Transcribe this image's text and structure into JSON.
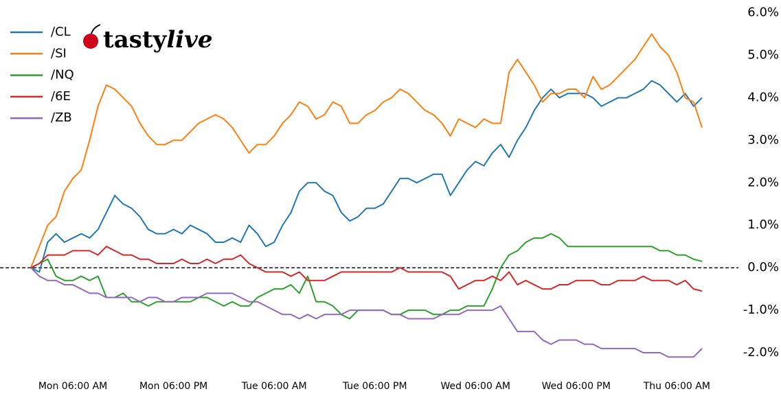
{
  "chart_data": {
    "type": "line",
    "logo": [
      "tasty",
      "live"
    ],
    "categories": [
      null,
      null,
      null,
      null,
      null,
      "Mon 06:00 AM",
      null,
      null,
      null,
      null,
      null,
      null,
      null,
      null,
      null,
      null,
      null,
      "Mon 06:00 PM",
      null,
      null,
      null,
      null,
      null,
      null,
      null,
      null,
      null,
      null,
      null,
      "Tue 06:00 AM",
      null,
      null,
      null,
      null,
      null,
      null,
      null,
      null,
      null,
      null,
      null,
      "Tue 06:00 PM",
      null,
      null,
      null,
      null,
      null,
      null,
      null,
      null,
      null,
      null,
      null,
      "Wed 06:00 AM",
      null,
      null,
      null,
      null,
      null,
      null,
      null,
      null,
      null,
      null,
      null,
      "Wed 06:00 PM",
      null,
      null,
      null,
      null,
      null,
      null,
      null,
      null,
      null,
      null,
      null,
      "Thu 06:00 AM",
      null,
      null,
      null
    ],
    "ylim": [
      -2.5,
      6.3
    ],
    "yticks": [
      {
        "value": -2,
        "label": "-2.0%"
      },
      {
        "value": -1,
        "label": "-1.0%"
      },
      {
        "value": 0,
        "label": "0.0%"
      },
      {
        "value": 1,
        "label": "1.0%"
      },
      {
        "value": 2,
        "label": "2.0%"
      },
      {
        "value": 3,
        "label": "3.0%"
      },
      {
        "value": 4,
        "label": "4.0%"
      },
      {
        "value": 5,
        "label": "5.0%"
      },
      {
        "value": 6,
        "label": "6.0%"
      }
    ],
    "hline": 0,
    "grid": false,
    "legend": "upper left",
    "series": [
      {
        "name": "/CL",
        "color": "#1f77b4",
        "values": [
          0,
          -0.1,
          0.6,
          0.8,
          0.6,
          0.7,
          0.8,
          0.7,
          0.9,
          1.3,
          1.7,
          1.5,
          1.4,
          1.2,
          0.9,
          0.8,
          0.8,
          0.9,
          0.8,
          1.0,
          0.9,
          0.8,
          0.6,
          0.6,
          0.7,
          0.6,
          1.0,
          0.8,
          0.5,
          0.6,
          1.0,
          1.3,
          1.8,
          2.0,
          2.0,
          1.8,
          1.7,
          1.3,
          1.1,
          1.2,
          1.4,
          1.4,
          1.5,
          1.8,
          2.1,
          2.1,
          2.0,
          2.1,
          2.2,
          2.2,
          1.7,
          2.0,
          2.3,
          2.5,
          2.4,
          2.7,
          2.9,
          2.6,
          3.0,
          3.3,
          3.7,
          4.0,
          4.2,
          4.0,
          4.1,
          4.1,
          4.1,
          4.0,
          3.8,
          3.9,
          4.0,
          4.0,
          4.1,
          4.2,
          4.4,
          4.3,
          4.1,
          3.9,
          4.1,
          3.8,
          4.0
        ]
      },
      {
        "name": "/SI",
        "color": "#ff7f0e",
        "values": [
          0,
          0.5,
          1.0,
          1.2,
          1.8,
          2.1,
          2.3,
          3.0,
          3.8,
          4.3,
          4.2,
          4.0,
          3.8,
          3.4,
          3.1,
          2.9,
          2.9,
          3.0,
          3.0,
          3.2,
          3.4,
          3.5,
          3.6,
          3.5,
          3.3,
          3.0,
          2.7,
          2.9,
          2.9,
          3.1,
          3.4,
          3.6,
          3.9,
          3.8,
          3.5,
          3.6,
          3.9,
          3.8,
          3.4,
          3.4,
          3.6,
          3.7,
          3.9,
          4.0,
          4.2,
          4.1,
          3.9,
          3.7,
          3.6,
          3.4,
          3.1,
          3.5,
          3.4,
          3.3,
          3.5,
          3.4,
          3.4,
          4.6,
          4.9,
          4.6,
          4.3,
          3.9,
          4.1,
          4.1,
          4.2,
          4.2,
          4.0,
          4.5,
          4.2,
          4.3,
          4.5,
          4.7,
          4.9,
          5.2,
          5.5,
          5.2,
          5.0,
          4.6,
          4.0,
          3.9,
          3.3
        ]
      },
      {
        "name": "/NQ",
        "color": "#2ca02c",
        "values": [
          0,
          0.1,
          0.2,
          -0.2,
          -0.3,
          -0.3,
          -0.2,
          -0.3,
          -0.2,
          -0.7,
          -0.7,
          -0.6,
          -0.8,
          -0.8,
          -0.9,
          -0.8,
          -0.8,
          -0.8,
          -0.8,
          -0.8,
          -0.7,
          -0.7,
          -0.8,
          -0.9,
          -0.8,
          -0.9,
          -0.9,
          -0.7,
          -0.6,
          -0.5,
          -0.5,
          -0.4,
          -0.6,
          -0.2,
          -0.8,
          -0.8,
          -0.9,
          -1.1,
          -1.2,
          -1.0,
          -1.0,
          -1.0,
          -1.0,
          -1.1,
          -1.1,
          -1.0,
          -1.0,
          -1.0,
          -1.1,
          -1.1,
          -1.0,
          -1.0,
          -0.9,
          -0.9,
          -0.9,
          -0.5,
          0.0,
          0.3,
          0.4,
          0.6,
          0.7,
          0.7,
          0.8,
          0.7,
          0.5,
          0.5,
          0.5,
          0.5,
          0.5,
          0.5,
          0.5,
          0.5,
          0.5,
          0.5,
          0.5,
          0.4,
          0.4,
          0.3,
          0.3,
          0.2,
          0.15
        ]
      },
      {
        "name": "/6E",
        "color": "#d62728",
        "values": [
          0,
          0.1,
          0.3,
          0.3,
          0.3,
          0.4,
          0.4,
          0.4,
          0.3,
          0.5,
          0.4,
          0.3,
          0.3,
          0.2,
          0.2,
          0.1,
          0.1,
          0.1,
          0.2,
          0.1,
          0.1,
          0.2,
          0.1,
          0.2,
          0.2,
          0.3,
          0.1,
          0.0,
          -0.1,
          -0.1,
          -0.1,
          -0.2,
          -0.1,
          -0.3,
          -0.3,
          -0.3,
          -0.2,
          -0.1,
          -0.1,
          -0.1,
          -0.1,
          -0.1,
          -0.1,
          -0.1,
          0.0,
          -0.1,
          -0.1,
          -0.1,
          -0.1,
          -0.1,
          -0.2,
          -0.5,
          -0.4,
          -0.3,
          -0.3,
          -0.2,
          -0.3,
          -0.1,
          -0.4,
          -0.3,
          -0.4,
          -0.5,
          -0.5,
          -0.4,
          -0.4,
          -0.3,
          -0.3,
          -0.3,
          -0.4,
          -0.4,
          -0.3,
          -0.3,
          -0.3,
          -0.2,
          -0.3,
          -0.3,
          -0.3,
          -0.4,
          -0.3,
          -0.5,
          -0.55
        ]
      },
      {
        "name": "/ZB",
        "color": "#9467bd",
        "values": [
          0,
          -0.2,
          -0.3,
          -0.3,
          -0.4,
          -0.4,
          -0.5,
          -0.6,
          -0.6,
          -0.7,
          -0.7,
          -0.7,
          -0.7,
          -0.8,
          -0.7,
          -0.7,
          -0.8,
          -0.8,
          -0.7,
          -0.7,
          -0.7,
          -0.6,
          -0.6,
          -0.6,
          -0.6,
          -0.7,
          -0.8,
          -0.8,
          -0.9,
          -1.0,
          -1.1,
          -1.1,
          -1.2,
          -1.1,
          -1.2,
          -1.1,
          -1.1,
          -1.1,
          -1.0,
          -1.0,
          -1.0,
          -1.0,
          -1.0,
          -1.1,
          -1.1,
          -1.2,
          -1.2,
          -1.2,
          -1.2,
          -1.1,
          -1.1,
          -1.1,
          -1.0,
          -1.0,
          -1.0,
          -1.0,
          -0.9,
          -1.2,
          -1.5,
          -1.5,
          -1.5,
          -1.7,
          -1.8,
          -1.7,
          -1.7,
          -1.7,
          -1.8,
          -1.8,
          -1.9,
          -1.9,
          -1.9,
          -1.9,
          -1.9,
          -2.0,
          -2.0,
          -2.0,
          -2.1,
          -2.1,
          -2.1,
          -2.1,
          -1.9
        ]
      }
    ]
  }
}
